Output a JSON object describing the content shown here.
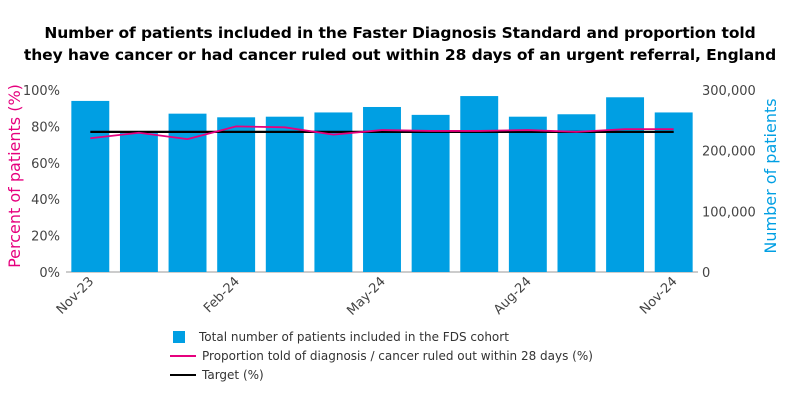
{
  "chart_data": {
    "type": "bar",
    "title_lines": [
      "Number of patients included in the Faster Diagnosis Standard and proportion told",
      "they have cancer or had cancer ruled out within 28 days of an urgent referral, England"
    ],
    "categories": [
      "Nov-23",
      "Dec-23",
      "Jan-24",
      "Feb-24",
      "Mar-24",
      "Apr-24",
      "May-24",
      "Jun-24",
      "Jul-24",
      "Aug-24",
      "Sep-24",
      "Oct-24",
      "Nov-24"
    ],
    "x_tick_labels": [
      "Nov-23",
      "Feb-24",
      "May-24",
      "Aug-24",
      "Nov-24"
    ],
    "series": [
      {
        "name": "Total number of patients included in the FDS cohort",
        "axis": "right",
        "type": "bar",
        "color": "#009fe3",
        "values": [
          282000,
          229000,
          261000,
          255000,
          256000,
          263000,
          272000,
          259000,
          290000,
          256000,
          260000,
          288000,
          263000
        ]
      },
      {
        "name": "Proportion told of diagnosis / cancer ruled out within 28 days (%)",
        "axis": "left",
        "type": "line",
        "color": "#e6007e",
        "values": [
          73.5,
          76.5,
          73.0,
          80.0,
          79.5,
          75.5,
          78.0,
          77.5,
          77.5,
          78.0,
          77.0,
          78.5,
          78.5
        ]
      },
      {
        "name": "Target (%)",
        "axis": "left",
        "type": "line",
        "color": "#000000",
        "values": [
          77,
          77,
          77,
          77,
          77,
          77,
          77,
          77,
          77,
          77,
          77,
          77,
          77
        ]
      }
    ],
    "left_axis": {
      "label": "Percent of patients (%)",
      "ylim": [
        0,
        100
      ],
      "ticks": [
        0,
        20,
        40,
        60,
        80,
        100
      ],
      "tick_labels": [
        "0%",
        "20%",
        "40%",
        "60%",
        "80%",
        "100%"
      ],
      "color": "#e6007e"
    },
    "right_axis": {
      "label": "Number of patients",
      "ylim": [
        0,
        300000
      ],
      "ticks": [
        0,
        100000,
        200000,
        300000
      ],
      "tick_labels": [
        "0",
        "100,000",
        "200,000",
        "300,000"
      ],
      "color": "#009fe3"
    },
    "legend": [
      {
        "label": "Total number of patients included in the FDS cohort",
        "kind": "box"
      },
      {
        "label": "Proportion told of diagnosis / cancer ruled out within 28 days (%)",
        "kind": "line-pink"
      },
      {
        "label": "Target (%)",
        "kind": "line-black"
      }
    ],
    "legend_position": "bottom"
  }
}
